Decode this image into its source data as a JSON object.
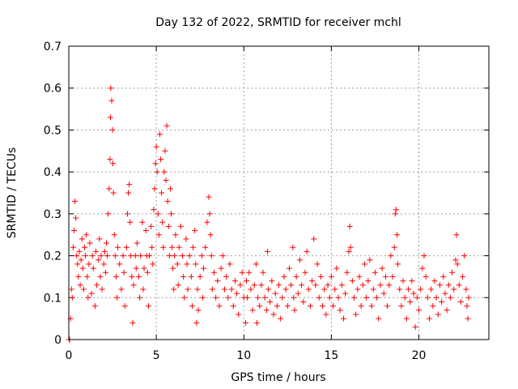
{
  "chart_data": {
    "type": "scatter",
    "title": "Day 132 of 2022, SRMTID for receiver mchl",
    "xlabel": "GPS time / hours",
    "ylabel": "SRMTID / TECUs",
    "xlim": [
      0,
      24
    ],
    "ylim": [
      0,
      0.7
    ],
    "xticks": [
      0,
      5,
      10,
      15,
      20
    ],
    "xtick_labels": [
      "0",
      "5",
      "10",
      "15",
      "20"
    ],
    "yticks": [
      0,
      0.1,
      0.2,
      0.3,
      0.4,
      0.5,
      0.6,
      0.7
    ],
    "ytick_labels": [
      "0",
      "0.1",
      "0.2",
      "0.3",
      "0.4",
      "0.5",
      "0.6",
      "0.7"
    ],
    "grid": true,
    "marker": "+",
    "color": "#ff0000",
    "series": [
      {
        "name": "SRMTID",
        "points": [
          [
            0.02,
            0.0
          ],
          [
            0.05,
            0.0
          ],
          [
            0.1,
            0.05
          ],
          [
            0.15,
            0.12
          ],
          [
            0.2,
            0.1
          ],
          [
            0.25,
            0.22
          ],
          [
            0.3,
            0.26
          ],
          [
            0.35,
            0.33
          ],
          [
            0.4,
            0.29
          ],
          [
            0.45,
            0.2
          ],
          [
            0.5,
            0.18
          ],
          [
            0.55,
            0.15
          ],
          [
            0.6,
            0.21
          ],
          [
            0.65,
            0.13
          ],
          [
            0.7,
            0.19
          ],
          [
            0.75,
            0.24
          ],
          [
            0.8,
            0.17
          ],
          [
            0.85,
            0.12
          ],
          [
            0.9,
            0.22
          ],
          [
            0.95,
            0.2
          ],
          [
            1.0,
            0.25
          ],
          [
            1.05,
            0.15
          ],
          [
            1.1,
            0.1
          ],
          [
            1.15,
            0.18
          ],
          [
            1.2,
            0.23
          ],
          [
            1.3,
            0.11
          ],
          [
            1.35,
            0.2
          ],
          [
            1.4,
            0.17
          ],
          [
            1.5,
            0.08
          ],
          [
            1.55,
            0.21
          ],
          [
            1.6,
            0.13
          ],
          [
            1.7,
            0.19
          ],
          [
            1.75,
            0.24
          ],
          [
            1.8,
            0.15
          ],
          [
            1.85,
            0.2
          ],
          [
            1.9,
            0.12
          ],
          [
            2.0,
            0.18
          ],
          [
            2.05,
            0.21
          ],
          [
            2.1,
            0.16
          ],
          [
            2.15,
            0.23
          ],
          [
            2.2,
            0.2
          ],
          [
            2.25,
            0.3
          ],
          [
            2.3,
            0.36
          ],
          [
            2.35,
            0.43
          ],
          [
            2.38,
            0.53
          ],
          [
            2.4,
            0.6
          ],
          [
            2.45,
            0.57
          ],
          [
            2.5,
            0.5
          ],
          [
            2.52,
            0.42
          ],
          [
            2.55,
            0.35
          ],
          [
            2.6,
            0.25
          ],
          [
            2.65,
            0.2
          ],
          [
            2.7,
            0.15
          ],
          [
            2.75,
            0.1
          ],
          [
            2.8,
            0.22
          ],
          [
            2.9,
            0.18
          ],
          [
            3.0,
            0.12
          ],
          [
            3.1,
            0.2
          ],
          [
            3.15,
            0.16
          ],
          [
            3.2,
            0.08
          ],
          [
            3.3,
            0.22
          ],
          [
            3.35,
            0.3
          ],
          [
            3.4,
            0.35
          ],
          [
            3.45,
            0.37
          ],
          [
            3.5,
            0.28
          ],
          [
            3.55,
            0.2
          ],
          [
            3.6,
            0.15
          ],
          [
            3.65,
            0.04
          ],
          [
            3.7,
            0.13
          ],
          [
            3.8,
            0.2
          ],
          [
            3.85,
            0.17
          ],
          [
            3.9,
            0.23
          ],
          [
            4.0,
            0.15
          ],
          [
            4.05,
            0.1
          ],
          [
            4.1,
            0.2
          ],
          [
            4.2,
            0.28
          ],
          [
            4.25,
            0.12
          ],
          [
            4.3,
            0.17
          ],
          [
            4.4,
            0.26
          ],
          [
            4.45,
            0.2
          ],
          [
            4.5,
            0.16
          ],
          [
            4.55,
            0.08
          ],
          [
            4.6,
            0.2
          ],
          [
            4.7,
            0.27
          ],
          [
            4.75,
            0.22
          ],
          [
            4.8,
            0.18
          ],
          [
            4.85,
            0.31
          ],
          [
            4.9,
            0.36
          ],
          [
            4.95,
            0.42
          ],
          [
            5.0,
            0.46
          ],
          [
            5.05,
            0.4
          ],
          [
            5.1,
            0.3
          ],
          [
            5.15,
            0.25
          ],
          [
            5.2,
            0.49
          ],
          [
            5.25,
            0.43
          ],
          [
            5.3,
            0.35
          ],
          [
            5.35,
            0.28
          ],
          [
            5.4,
            0.22
          ],
          [
            5.45,
            0.4
          ],
          [
            5.5,
            0.45
          ],
          [
            5.55,
            0.38
          ],
          [
            5.6,
            0.51
          ],
          [
            5.65,
            0.33
          ],
          [
            5.7,
            0.27
          ],
          [
            5.75,
            0.2
          ],
          [
            5.8,
            0.36
          ],
          [
            5.85,
            0.3
          ],
          [
            5.9,
            0.22
          ],
          [
            5.95,
            0.17
          ],
          [
            6.0,
            0.12
          ],
          [
            6.05,
            0.2
          ],
          [
            6.1,
            0.25
          ],
          [
            6.2,
            0.18
          ],
          [
            6.25,
            0.13
          ],
          [
            6.3,
            0.22
          ],
          [
            6.4,
            0.27
          ],
          [
            6.5,
            0.2
          ],
          [
            6.55,
            0.15
          ],
          [
            6.6,
            0.1
          ],
          [
            6.7,
            0.24
          ],
          [
            6.75,
            0.18
          ],
          [
            6.8,
            0.12
          ],
          [
            6.9,
            0.2
          ],
          [
            7.0,
            0.15
          ],
          [
            7.05,
            0.08
          ],
          [
            7.1,
            0.22
          ],
          [
            7.2,
            0.26
          ],
          [
            7.25,
            0.18
          ],
          [
            7.3,
            0.04
          ],
          [
            7.35,
            0.12
          ],
          [
            7.4,
            0.07
          ],
          [
            7.5,
            0.15
          ],
          [
            7.6,
            0.2
          ],
          [
            7.65,
            0.1
          ],
          [
            7.7,
            0.17
          ],
          [
            7.8,
            0.22
          ],
          [
            7.9,
            0.28
          ],
          [
            8.0,
            0.34
          ],
          [
            8.05,
            0.3
          ],
          [
            8.1,
            0.25
          ],
          [
            8.15,
            0.2
          ],
          [
            8.2,
            0.12
          ],
          [
            8.3,
            0.16
          ],
          [
            8.4,
            0.1
          ],
          [
            8.5,
            0.14
          ],
          [
            8.6,
            0.08
          ],
          [
            8.7,
            0.17
          ],
          [
            8.8,
            0.2
          ],
          [
            8.9,
            0.12
          ],
          [
            9.0,
            0.15
          ],
          [
            9.1,
            0.1
          ],
          [
            9.2,
            0.18
          ],
          [
            9.3,
            0.12
          ],
          [
            9.4,
            0.08
          ],
          [
            9.5,
            0.14
          ],
          [
            9.6,
            0.11
          ],
          [
            9.7,
            0.06
          ],
          [
            9.8,
            0.13
          ],
          [
            9.9,
            0.16
          ],
          [
            10.0,
            0.1
          ],
          [
            10.1,
            0.04
          ],
          [
            10.15,
            0.14
          ],
          [
            10.2,
            0.1
          ],
          [
            10.3,
            0.16
          ],
          [
            10.4,
            0.12
          ],
          [
            10.5,
            0.07
          ],
          [
            10.6,
            0.13
          ],
          [
            10.7,
            0.18
          ],
          [
            10.75,
            0.04
          ],
          [
            10.8,
            0.1
          ],
          [
            10.9,
            0.08
          ],
          [
            11.0,
            0.13
          ],
          [
            11.1,
            0.16
          ],
          [
            11.2,
            0.1
          ],
          [
            11.3,
            0.07
          ],
          [
            11.35,
            0.21
          ],
          [
            11.4,
            0.12
          ],
          [
            11.5,
            0.09
          ],
          [
            11.6,
            0.14
          ],
          [
            11.7,
            0.06
          ],
          [
            11.8,
            0.11
          ],
          [
            11.9,
            0.08
          ],
          [
            12.0,
            0.13
          ],
          [
            12.1,
            0.05
          ],
          [
            12.2,
            0.1
          ],
          [
            12.3,
            0.15
          ],
          [
            12.4,
            0.12
          ],
          [
            12.5,
            0.08
          ],
          [
            12.6,
            0.17
          ],
          [
            12.7,
            0.13
          ],
          [
            12.8,
            0.22
          ],
          [
            12.85,
            0.1
          ],
          [
            12.9,
            0.07
          ],
          [
            13.0,
            0.15
          ],
          [
            13.1,
            0.11
          ],
          [
            13.2,
            0.19
          ],
          [
            13.3,
            0.13
          ],
          [
            13.4,
            0.09
          ],
          [
            13.5,
            0.16
          ],
          [
            13.6,
            0.21
          ],
          [
            13.7,
            0.12
          ],
          [
            13.8,
            0.08
          ],
          [
            13.9,
            0.14
          ],
          [
            14.0,
            0.24
          ],
          [
            14.1,
            0.13
          ],
          [
            14.2,
            0.18
          ],
          [
            14.3,
            0.1
          ],
          [
            14.4,
            0.15
          ],
          [
            14.5,
            0.08
          ],
          [
            14.6,
            0.12
          ],
          [
            14.7,
            0.06
          ],
          [
            14.8,
            0.13
          ],
          [
            14.9,
            0.1
          ],
          [
            15.0,
            0.15
          ],
          [
            15.1,
            0.08
          ],
          [
            15.2,
            0.12
          ],
          [
            15.3,
            0.17
          ],
          [
            15.4,
            0.1
          ],
          [
            15.5,
            0.07
          ],
          [
            15.6,
            0.13
          ],
          [
            15.7,
            0.05
          ],
          [
            15.8,
            0.11
          ],
          [
            15.9,
            0.16
          ],
          [
            16.0,
            0.21
          ],
          [
            16.05,
            0.27
          ],
          [
            16.1,
            0.22
          ],
          [
            16.2,
            0.14
          ],
          [
            16.3,
            0.1
          ],
          [
            16.4,
            0.06
          ],
          [
            16.5,
            0.12
          ],
          [
            16.6,
            0.15
          ],
          [
            16.7,
            0.08
          ],
          [
            16.8,
            0.13
          ],
          [
            16.9,
            0.18
          ],
          [
            17.0,
            0.1
          ],
          [
            17.1,
            0.14
          ],
          [
            17.2,
            0.19
          ],
          [
            17.3,
            0.08
          ],
          [
            17.4,
            0.12
          ],
          [
            17.5,
            0.16
          ],
          [
            17.6,
            0.1
          ],
          [
            17.7,
            0.05
          ],
          [
            17.8,
            0.13
          ],
          [
            17.9,
            0.17
          ],
          [
            18.0,
            0.11
          ],
          [
            18.1,
            0.15
          ],
          [
            18.2,
            0.08
          ],
          [
            18.3,
            0.13
          ],
          [
            18.4,
            0.2
          ],
          [
            18.5,
            0.15
          ],
          [
            18.6,
            0.22
          ],
          [
            18.65,
            0.3
          ],
          [
            18.7,
            0.31
          ],
          [
            18.75,
            0.25
          ],
          [
            18.8,
            0.18
          ],
          [
            18.9,
            0.12
          ],
          [
            19.0,
            0.08
          ],
          [
            19.1,
            0.14
          ],
          [
            19.2,
            0.1
          ],
          [
            19.3,
            0.05
          ],
          [
            19.4,
            0.12
          ],
          [
            19.5,
            0.09
          ],
          [
            19.6,
            0.14
          ],
          [
            19.7,
            0.11
          ],
          [
            19.8,
            0.03
          ],
          [
            19.9,
            0.1
          ],
          [
            20.0,
            0.07
          ],
          [
            20.1,
            0.12
          ],
          [
            20.2,
            0.17
          ],
          [
            20.3,
            0.2
          ],
          [
            20.4,
            0.15
          ],
          [
            20.5,
            0.1
          ],
          [
            20.6,
            0.05
          ],
          [
            20.7,
            0.12
          ],
          [
            20.8,
            0.08
          ],
          [
            20.9,
            0.14
          ],
          [
            21.0,
            0.1
          ],
          [
            21.1,
            0.06
          ],
          [
            21.2,
            0.13
          ],
          [
            21.3,
            0.09
          ],
          [
            21.4,
            0.15
          ],
          [
            21.5,
            0.11
          ],
          [
            21.6,
            0.07
          ],
          [
            21.7,
            0.13
          ],
          [
            21.8,
            0.1
          ],
          [
            21.9,
            0.16
          ],
          [
            22.0,
            0.12
          ],
          [
            22.1,
            0.19
          ],
          [
            22.15,
            0.25
          ],
          [
            22.2,
            0.18
          ],
          [
            22.3,
            0.13
          ],
          [
            22.4,
            0.09
          ],
          [
            22.5,
            0.15
          ],
          [
            22.6,
            0.2
          ],
          [
            22.7,
            0.12
          ],
          [
            22.75,
            0.08
          ],
          [
            22.8,
            0.05
          ],
          [
            22.85,
            0.1
          ]
        ]
      }
    ]
  }
}
